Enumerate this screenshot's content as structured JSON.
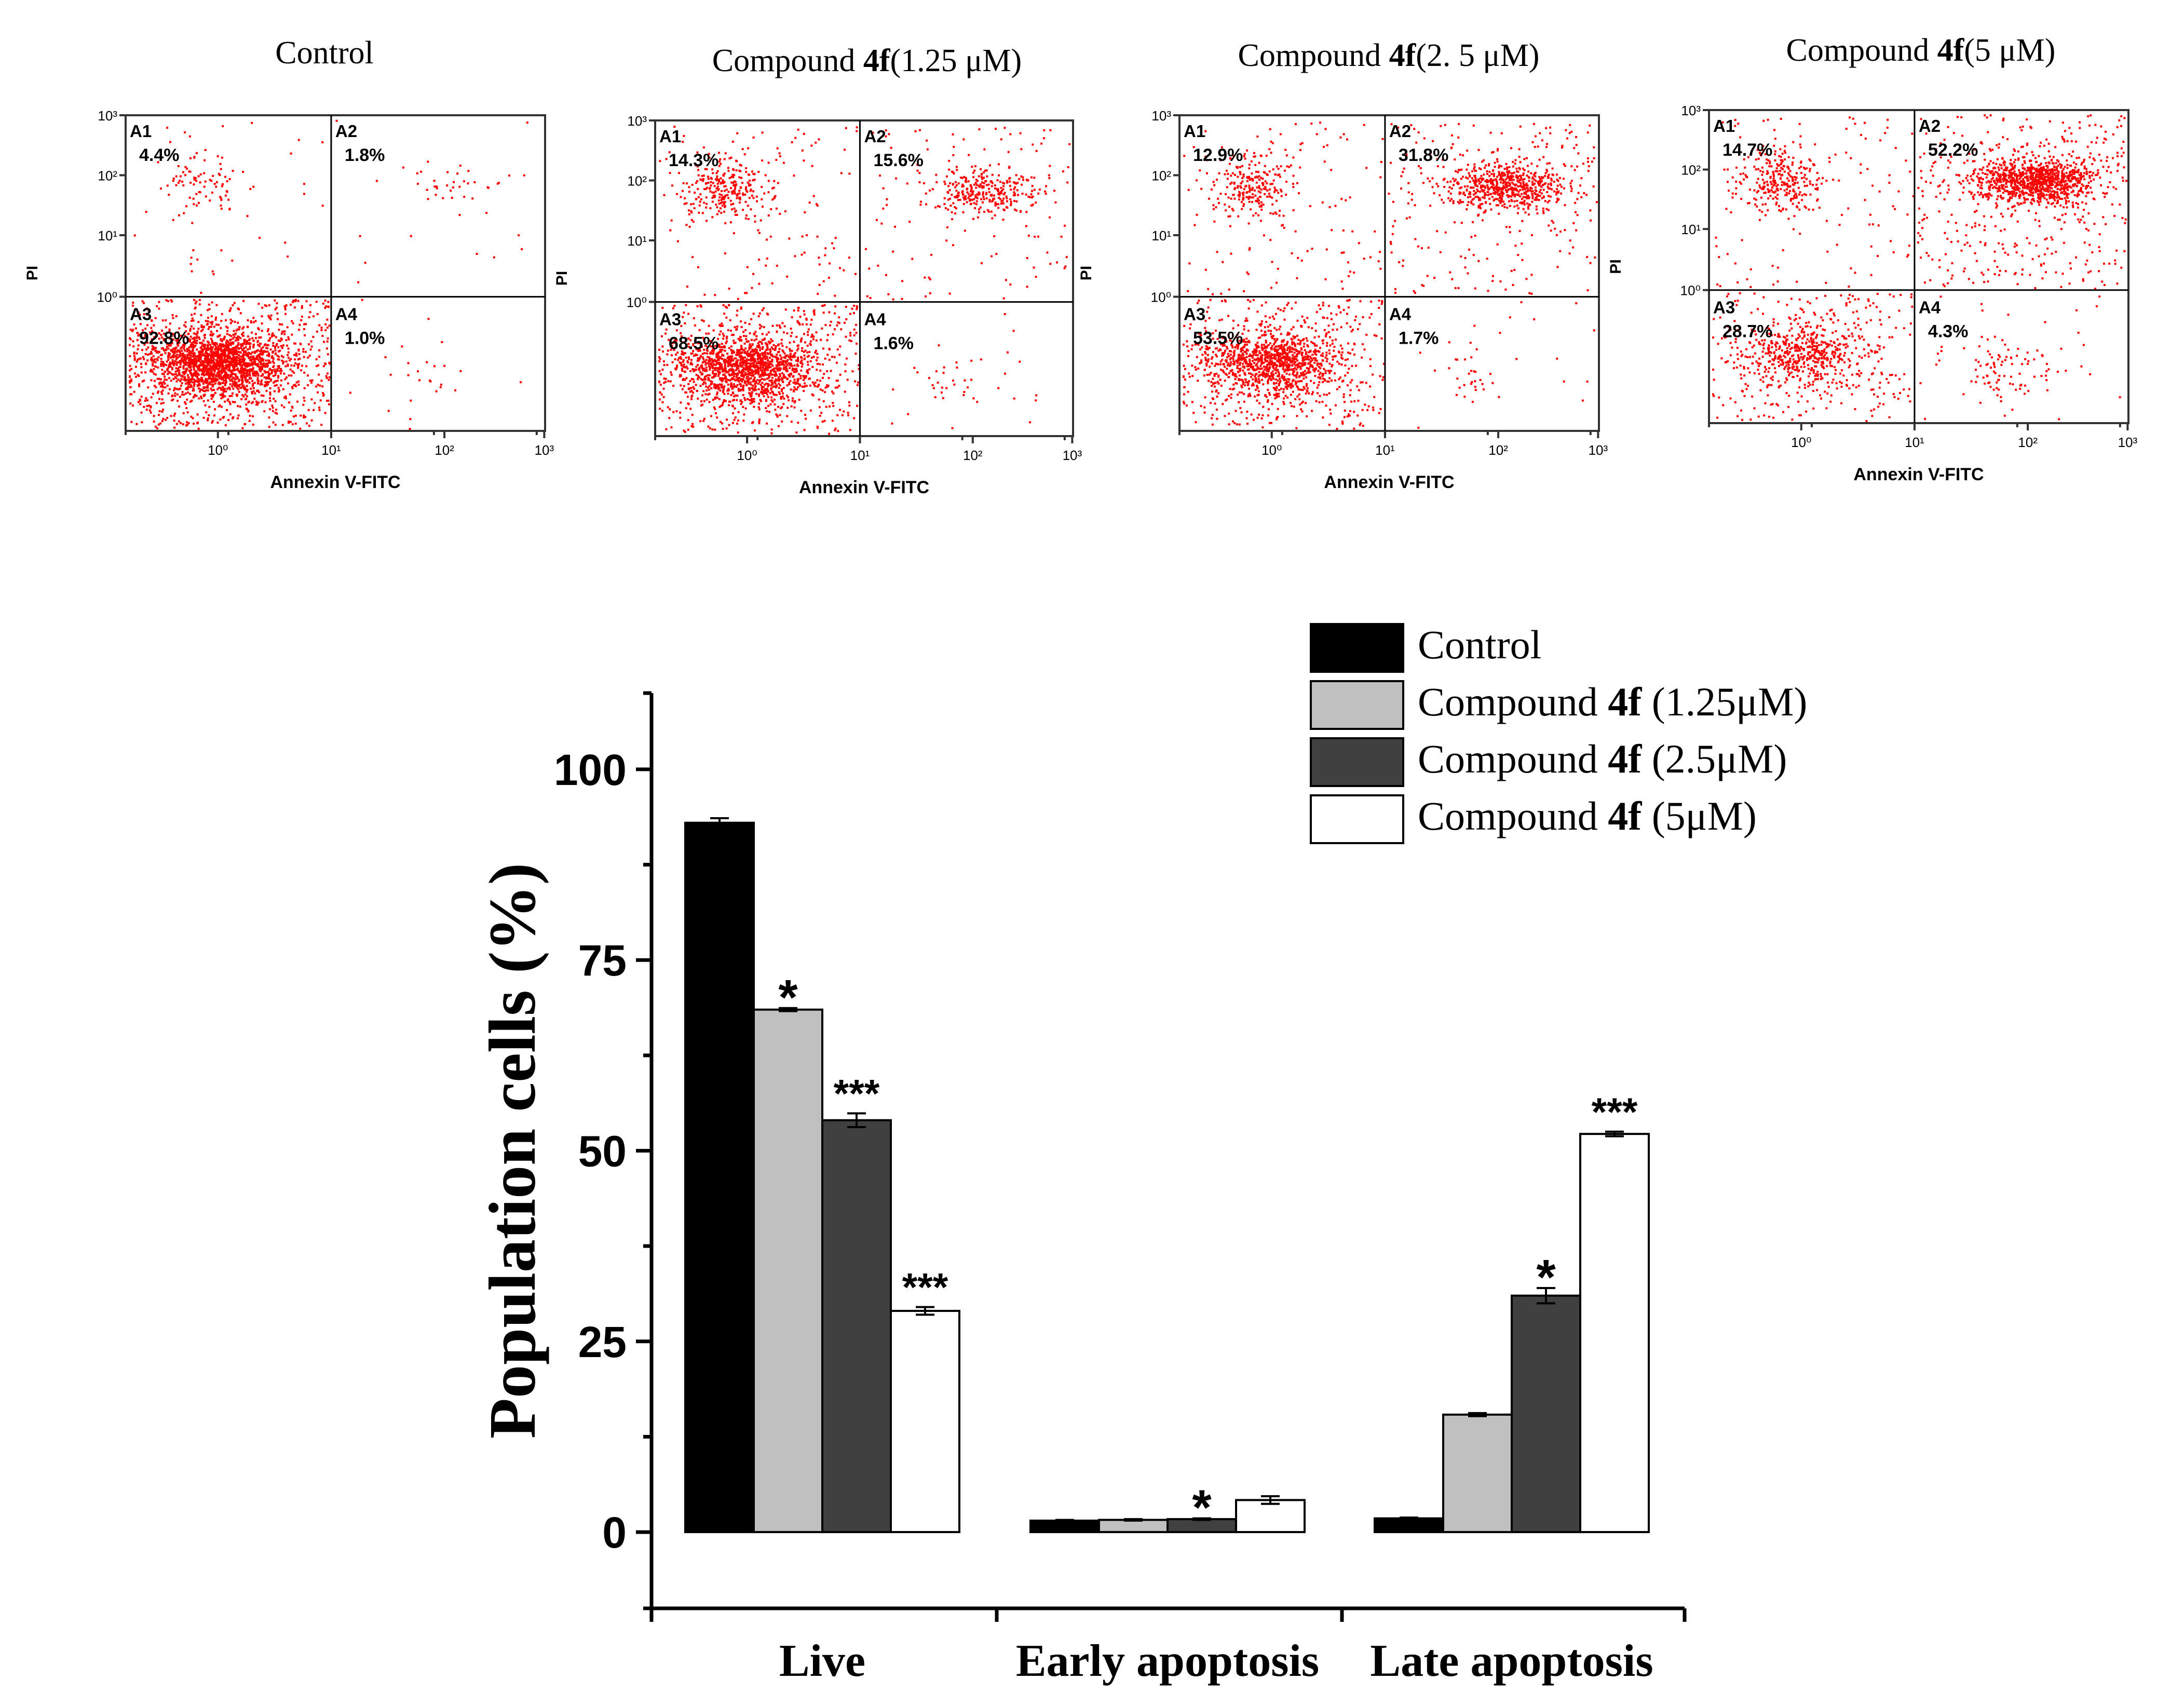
{
  "flow_panels": {
    "x_label": "Annexin V-FITC",
    "y_label": "PI",
    "tick_labels": [
      "10⁰",
      "10¹",
      "10²",
      "10³"
    ],
    "quadrant_names": [
      "A1",
      "A2",
      "A3",
      "A4"
    ],
    "dot_color": "#ff0000",
    "panels": [
      {
        "title_prefix": "Control",
        "title_bold": "",
        "title_suffix": "",
        "quadrants": {
          "A1": "4.4%",
          "A2": "1.8%",
          "A3": "92.8%",
          "A4": "1.0%"
        }
      },
      {
        "title_prefix": "Compound ",
        "title_bold": "4f",
        "title_suffix": "(1.25 μM)",
        "quadrants": {
          "A1": "14.3%",
          "A2": "15.6%",
          "A3": "68.5%",
          "A4": "1.6%"
        }
      },
      {
        "title_prefix": "Compound ",
        "title_bold": "4f",
        "title_suffix": "(2. 5 μM)",
        "quadrants": {
          "A1": "12.9%",
          "A2": "31.8%",
          "A3": "53.5%",
          "A4": "1.7%"
        }
      },
      {
        "title_prefix": "Compound ",
        "title_bold": "4f",
        "title_suffix": "(5 μM)",
        "quadrants": {
          "A1": "14.7%",
          "A2": "52.2%",
          "A3": "28.7%",
          "A4": "4.3%"
        }
      }
    ]
  },
  "chart_data": {
    "type": "bar",
    "title": "",
    "xlabel": "",
    "ylabel": "Population cells (%)",
    "ylim": [
      -10,
      110
    ],
    "yticks": [
      0,
      25,
      50,
      75,
      100
    ],
    "categories": [
      "Live",
      "Early apoptosis",
      "Late apoptosis"
    ],
    "series": [
      {
        "name_prefix": "Control",
        "name_bold": "",
        "name_suffix": "",
        "color": "#000000",
        "values": [
          93.0,
          1.5,
          1.8
        ],
        "errors": [
          0.6,
          0.1,
          0.1
        ],
        "sig": [
          "",
          "",
          ""
        ]
      },
      {
        "name_prefix": "Compound ",
        "name_bold": "4f",
        "name_suffix": " (1.25μM)",
        "color": "#c0c0c0",
        "values": [
          68.5,
          1.6,
          15.4
        ],
        "errors": [
          0.2,
          0.1,
          0.2
        ],
        "sig": [
          "*",
          "",
          ""
        ]
      },
      {
        "name_prefix": "Compound ",
        "name_bold": "4f",
        "name_suffix": " (2.5μM)",
        "color": "#404040",
        "values": [
          54.0,
          1.7,
          31.0
        ],
        "errors": [
          0.9,
          0.1,
          1.0
        ],
        "sig": [
          "***",
          "*",
          "*"
        ]
      },
      {
        "name_prefix": "Compound ",
        "name_bold": "4f",
        "name_suffix": " (5μM)",
        "color": "#ffffff",
        "values": [
          29.0,
          4.2,
          52.2
        ],
        "errors": [
          0.5,
          0.5,
          0.3
        ],
        "sig": [
          "***",
          "",
          "***"
        ]
      }
    ]
  }
}
